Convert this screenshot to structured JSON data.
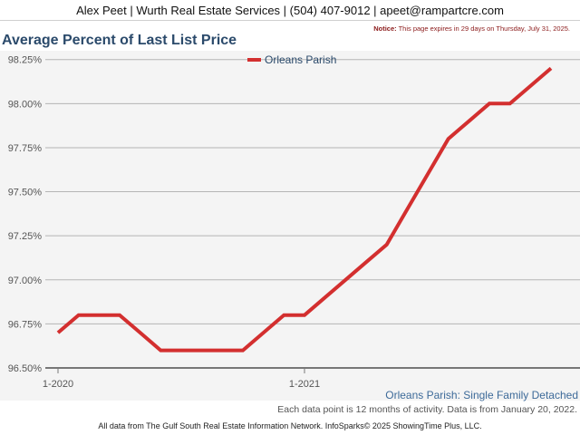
{
  "header": {
    "contact": "Alex Peet | Wurth Real Estate Services | (504) 407-9012 | apeet@rampartcre.com"
  },
  "notice": {
    "label": "Notice:",
    "text": "This page expires in 29 days on Thursday, July 31, 2025."
  },
  "captions": {
    "series_desc": "Orleans Parish: Single Family Detached",
    "data_note": "Each data point is 12 months of activity. Data is from January 20, 2022."
  },
  "footer": {
    "text": "All data from The Gulf South Real Estate Information Network. InfoSparks© 2025 ShowingTime Plus, LLC."
  },
  "colors": {
    "series": "#d32f2f",
    "grid": "#b5b5b5",
    "axis": "#777777",
    "title": "#2b4a6b"
  },
  "chart_data": {
    "type": "line",
    "title": "Average Percent of Last List Price",
    "xlabel": "",
    "ylabel": "",
    "x": [
      "2020-01",
      "2020-02",
      "2020-03",
      "2020-04",
      "2020-05",
      "2020-06",
      "2020-07",
      "2020-08",
      "2020-09",
      "2020-10",
      "2020-11",
      "2020-12",
      "2021-01",
      "2021-02",
      "2021-03",
      "2021-04",
      "2021-05",
      "2021-06",
      "2021-07",
      "2021-08",
      "2021-09",
      "2021-10",
      "2021-11",
      "2021-12",
      "2022-01"
    ],
    "x_tick_labels": [
      {
        "x": "2020-01",
        "label": "1-2020"
      },
      {
        "x": "2021-01",
        "label": "1-2021"
      }
    ],
    "y_ticks": [
      "96.50%",
      "96.75%",
      "97.00%",
      "97.25%",
      "97.50%",
      "97.75%",
      "98.00%",
      "98.25%"
    ],
    "ylim": [
      96.5,
      98.3
    ],
    "legend_position": "top-center",
    "grid": true,
    "series": [
      {
        "name": "Orleans Parish",
        "values": [
          96.7,
          96.8,
          96.8,
          96.8,
          96.7,
          96.6,
          96.6,
          96.6,
          96.6,
          96.6,
          96.7,
          96.8,
          96.8,
          96.9,
          97.0,
          97.1,
          97.2,
          97.4,
          97.6,
          97.8,
          97.9,
          98.0,
          98.0,
          98.1,
          98.2
        ]
      }
    ]
  }
}
